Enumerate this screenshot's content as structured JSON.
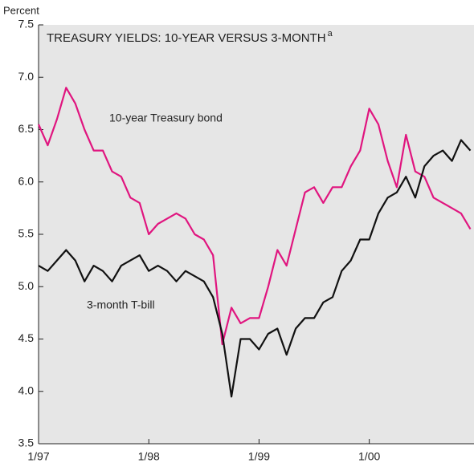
{
  "chart_data": {
    "type": "line",
    "title": "TREASURY YIELDS: 10-YEAR VERSUS 3-MONTH",
    "title_footnote": "a",
    "y_axis_label": "Percent",
    "x": [
      1997,
      1997.083,
      1997.167,
      1997.25,
      1997.333,
      1997.417,
      1997.5,
      1997.583,
      1997.667,
      1997.75,
      1997.833,
      1997.917,
      1998,
      1998.083,
      1998.167,
      1998.25,
      1998.333,
      1998.417,
      1998.5,
      1998.583,
      1998.667,
      1998.75,
      1998.833,
      1998.917,
      1999,
      1999.083,
      1999.167,
      1999.25,
      1999.333,
      1999.417,
      1999.5,
      1999.583,
      1999.667,
      1999.75,
      1999.833,
      1999.917,
      2000,
      2000.083,
      2000.167,
      2000.25,
      2000.333,
      2000.417,
      2000.5,
      2000.583,
      2000.667,
      2000.75,
      2000.833,
      2000.917
    ],
    "series": [
      {
        "name": "10-year Treasury bond",
        "color": "#e0157f",
        "values": [
          6.55,
          6.35,
          6.6,
          6.9,
          6.75,
          6.5,
          6.3,
          6.3,
          6.1,
          6.05,
          5.85,
          5.8,
          5.5,
          5.6,
          5.65,
          5.7,
          5.65,
          5.5,
          5.45,
          5.3,
          4.45,
          4.8,
          4.65,
          4.7,
          4.7,
          5.0,
          5.35,
          5.2,
          5.55,
          5.9,
          5.95,
          5.8,
          5.95,
          5.95,
          6.15,
          6.3,
          6.7,
          6.55,
          6.2,
          5.95,
          6.45,
          6.1,
          6.05,
          5.85,
          5.8,
          5.75,
          5.7,
          5.55
        ]
      },
      {
        "name": "3-month T-bill",
        "color": "#111111",
        "values": [
          5.2,
          5.15,
          5.25,
          5.35,
          5.25,
          5.05,
          5.2,
          5.15,
          5.05,
          5.2,
          5.25,
          5.3,
          5.15,
          5.2,
          5.15,
          5.05,
          5.15,
          5.1,
          5.05,
          4.9,
          4.55,
          3.95,
          4.5,
          4.5,
          4.4,
          4.55,
          4.6,
          4.35,
          4.6,
          4.7,
          4.7,
          4.85,
          4.9,
          5.15,
          5.25,
          5.45,
          5.45,
          5.7,
          5.85,
          5.9,
          6.05,
          5.85,
          6.15,
          6.25,
          6.3,
          6.2,
          6.4,
          6.3
        ]
      }
    ],
    "xlim": [
      1997,
      2000.95
    ],
    "xticks": [
      {
        "value": 1997,
        "label": "1/97"
      },
      {
        "value": 1998,
        "label": "1/98"
      },
      {
        "value": 1999,
        "label": "1/99"
      },
      {
        "value": 2000,
        "label": "1/00"
      }
    ],
    "ylim": [
      3.5,
      7.5
    ],
    "yticks": [
      3.5,
      {
        "value": 4,
        "label": "4.0"
      },
      4.5,
      {
        "value": 5,
        "label": "5.0"
      },
      5.5,
      {
        "value": 6,
        "label": "6.0"
      },
      6.5,
      {
        "value": 7,
        "label": "7.0"
      },
      7.5
    ]
  }
}
